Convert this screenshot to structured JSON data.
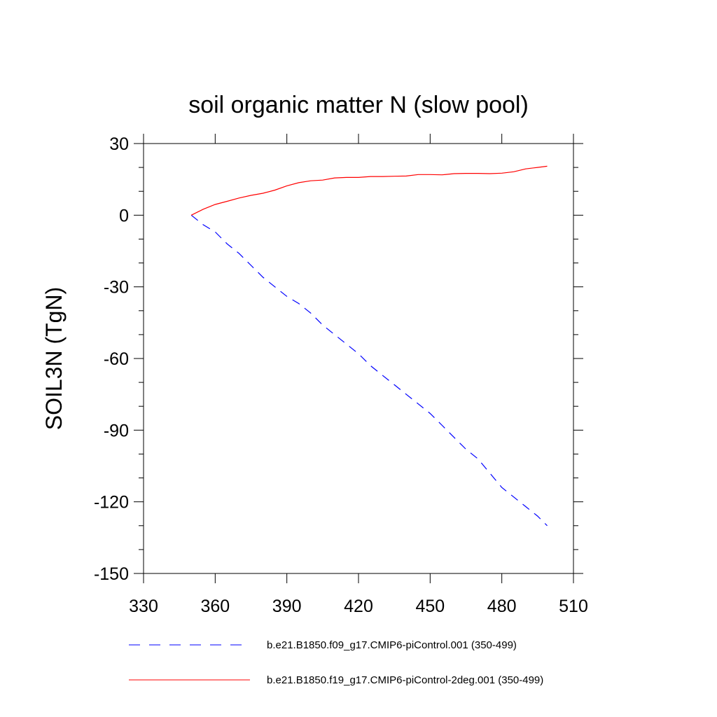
{
  "chart_data": {
    "type": "line",
    "title": "soil organic matter N (slow pool)",
    "xlabel": "",
    "ylabel": "SOIL3N  (TgN)",
    "xlim": [
      330,
      510
    ],
    "ylim": [
      -150,
      30
    ],
    "xticks": [
      330,
      360,
      390,
      420,
      450,
      480,
      510
    ],
    "yticks": [
      30,
      0,
      -30,
      -60,
      -90,
      -120,
      -150
    ],
    "grid": false,
    "legend_position": "bottom",
    "series": [
      {
        "name": "b.e21.B1850.f09_g17.CMIP6-piControl.001 (350-499)",
        "color": "#0000ff",
        "style": "dashed",
        "x": [
          350,
          355,
          360,
          365,
          370,
          375,
          380,
          385,
          390,
          395,
          400,
          405,
          410,
          415,
          420,
          425,
          430,
          435,
          440,
          445,
          450,
          455,
          460,
          465,
          470,
          475,
          480,
          485,
          490,
          495,
          499
        ],
        "y": [
          0,
          -4,
          -7,
          -12,
          -16,
          -21,
          -26,
          -30,
          -34,
          -37,
          -41,
          -46,
          -50,
          -54,
          -58,
          -63,
          -67,
          -71,
          -75,
          -79,
          -83,
          -88,
          -93,
          -98,
          -102,
          -108,
          -114,
          -118,
          -122,
          -126,
          -130
        ]
      },
      {
        "name": "b.e21.B1850.f19_g17.CMIP6-piControl-2deg.001 (350-499)",
        "color": "#ff0000",
        "style": "solid",
        "x": [
          350,
          355,
          360,
          365,
          370,
          375,
          380,
          385,
          390,
          395,
          400,
          405,
          410,
          415,
          420,
          425,
          430,
          435,
          440,
          445,
          450,
          455,
          460,
          465,
          470,
          475,
          480,
          485,
          490,
          495,
          499
        ],
        "y": [
          0,
          2.5,
          4.5,
          5.8,
          7.2,
          8.3,
          9.2,
          10.5,
          12.3,
          13.6,
          14.4,
          14.7,
          15.6,
          15.8,
          15.8,
          16.2,
          16.2,
          16.3,
          16.4,
          17,
          17,
          16.9,
          17.4,
          17.5,
          17.5,
          17.4,
          17.6,
          18.2,
          19.4,
          20,
          20.5
        ]
      }
    ]
  }
}
